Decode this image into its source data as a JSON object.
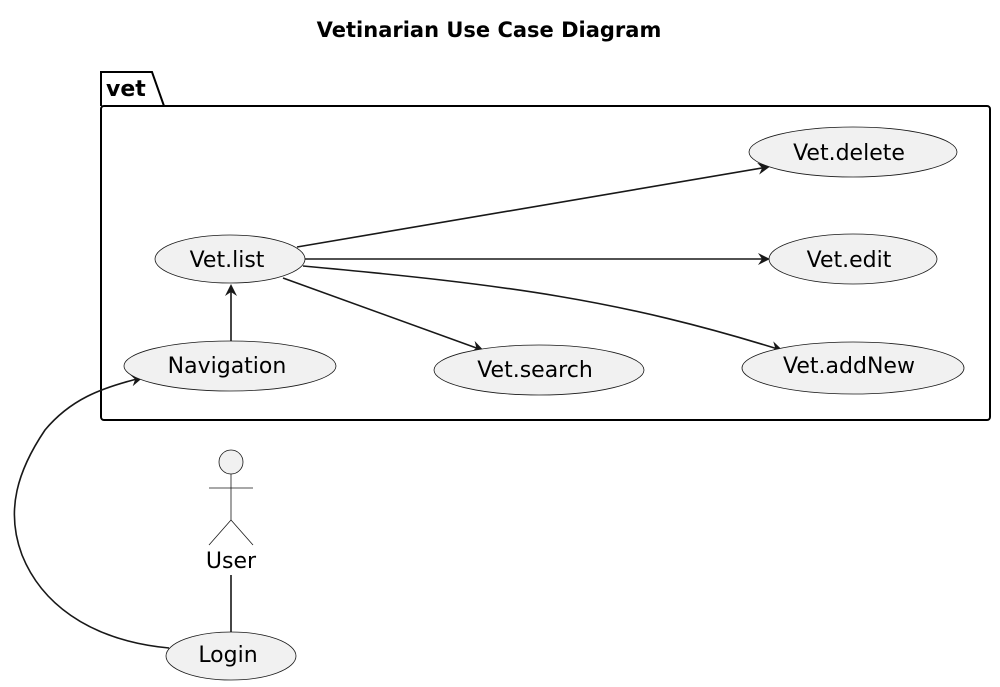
{
  "diagram": {
    "title": "Vetinarian Use Case Diagram",
    "package": {
      "name": "vet"
    },
    "use_cases": {
      "vet_delete": "Vet.delete",
      "vet_list": "Vet.list",
      "vet_edit": "Vet.edit",
      "navigation": "Navigation",
      "vet_search": "Vet.search",
      "vet_addnew": "Vet.addNew",
      "login": "Login"
    },
    "actors": {
      "user": "User"
    },
    "relations": [
      {
        "from": "Vet.list",
        "to": "Vet.delete",
        "type": "arrow"
      },
      {
        "from": "Vet.list",
        "to": "Vet.edit",
        "type": "arrow"
      },
      {
        "from": "Vet.list",
        "to": "Vet.search",
        "type": "arrow"
      },
      {
        "from": "Vet.list",
        "to": "Vet.addNew",
        "type": "arrow"
      },
      {
        "from": "Navigation",
        "to": "Vet.list",
        "type": "arrow"
      },
      {
        "from": "Login",
        "to": "Navigation",
        "type": "arrow"
      },
      {
        "from": "User",
        "to": "Login",
        "type": "line"
      }
    ]
  }
}
